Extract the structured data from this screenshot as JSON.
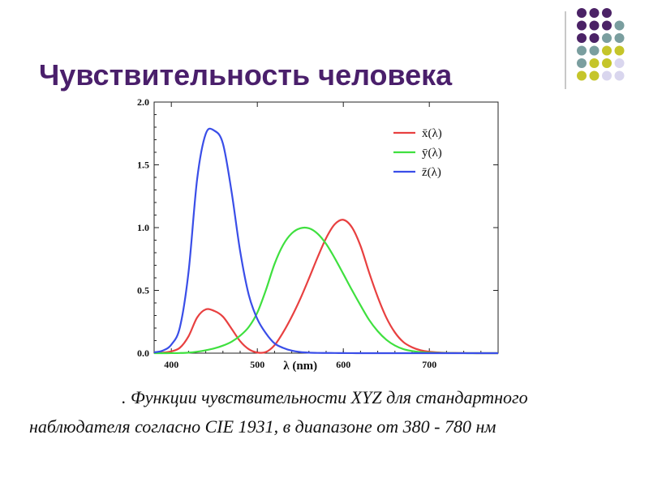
{
  "slide": {
    "title": "Чувствительность человека",
    "caption_line1": ". Функции чувствительности XYZ для стандартного",
    "caption_line2": "наблюдателя согласно CIE 1931, в диапазоне от 380 - 780 нм",
    "colors": {
      "title": "#4a1f6b",
      "purple": "#4b2266",
      "teal": "#7a9e9f",
      "yellow": "#c5c52a",
      "lavender": "#d9d6ee"
    }
  },
  "chart_data": {
    "type": "line",
    "xlabel": "λ (nm)",
    "xlim": [
      380,
      780
    ],
    "ylim": [
      0,
      2.0
    ],
    "x_ticks": [
      "400",
      "500",
      "600",
      "700"
    ],
    "y_ticks": [
      "0.0",
      "0.5",
      "1.0",
      "1.5",
      "2.0"
    ],
    "legend_position": "top-right",
    "series": [
      {
        "name": "x̄(λ)",
        "color": "#e84040",
        "x": [
          380,
          390,
          400,
          410,
          420,
          430,
          440,
          450,
          460,
          470,
          480,
          490,
          500,
          510,
          520,
          530,
          540,
          550,
          560,
          570,
          580,
          590,
          600,
          610,
          620,
          630,
          640,
          650,
          660,
          670,
          680,
          690,
          700,
          710,
          720,
          730,
          740,
          750,
          760,
          770,
          780
        ],
        "values": [
          0.0014,
          0.0042,
          0.0143,
          0.0435,
          0.1344,
          0.2839,
          0.3483,
          0.3362,
          0.2908,
          0.1954,
          0.0956,
          0.032,
          0.0049,
          0.0093,
          0.0633,
          0.1655,
          0.2904,
          0.4334,
          0.5945,
          0.7621,
          0.9163,
          1.0263,
          1.0622,
          1.0026,
          0.8544,
          0.6424,
          0.4479,
          0.2835,
          0.1649,
          0.0874,
          0.0468,
          0.0227,
          0.0114,
          0.0058,
          0.0029,
          0.0014,
          0.0007,
          0.0003,
          0.0002,
          0.0001,
          0.0
        ]
      },
      {
        "name": "ȳ(λ)",
        "color": "#3fe03f",
        "x": [
          380,
          390,
          400,
          410,
          420,
          430,
          440,
          450,
          460,
          470,
          480,
          490,
          500,
          510,
          520,
          530,
          540,
          550,
          560,
          570,
          580,
          590,
          600,
          610,
          620,
          630,
          640,
          650,
          660,
          670,
          680,
          690,
          700,
          710,
          720,
          730,
          740,
          750,
          760,
          770,
          780
        ],
        "values": [
          0.0,
          0.0001,
          0.0004,
          0.0012,
          0.004,
          0.0116,
          0.023,
          0.038,
          0.06,
          0.091,
          0.139,
          0.208,
          0.323,
          0.503,
          0.71,
          0.862,
          0.954,
          0.995,
          0.995,
          0.952,
          0.87,
          0.757,
          0.631,
          0.503,
          0.381,
          0.265,
          0.175,
          0.107,
          0.061,
          0.032,
          0.017,
          0.0082,
          0.0041,
          0.0021,
          0.001,
          0.0005,
          0.0003,
          0.0001,
          0.0001,
          0.0,
          0.0
        ]
      },
      {
        "name": "z̄(λ)",
        "color": "#3a4ee8",
        "x": [
          380,
          390,
          400,
          410,
          420,
          430,
          440,
          450,
          460,
          470,
          480,
          490,
          500,
          510,
          520,
          530,
          540,
          550,
          560,
          570,
          580,
          590,
          600,
          610,
          620,
          630,
          640,
          650,
          660,
          670,
          680,
          690,
          700,
          710,
          720,
          730,
          740,
          750,
          760,
          770,
          780
        ],
        "values": [
          0.0065,
          0.0201,
          0.0679,
          0.2074,
          0.6456,
          1.3856,
          1.747,
          1.7721,
          1.6692,
          1.2876,
          0.813,
          0.4652,
          0.272,
          0.1582,
          0.0782,
          0.0422,
          0.0203,
          0.0087,
          0.0039,
          0.0021,
          0.0017,
          0.0011,
          0.0008,
          0.0003,
          0.0002,
          0.0,
          0.0,
          0.0,
          0.0,
          0.0,
          0.0,
          0.0,
          0.0,
          0.0,
          0.0,
          0.0,
          0.0,
          0.0,
          0.0,
          0.0,
          0.0
        ]
      }
    ]
  }
}
